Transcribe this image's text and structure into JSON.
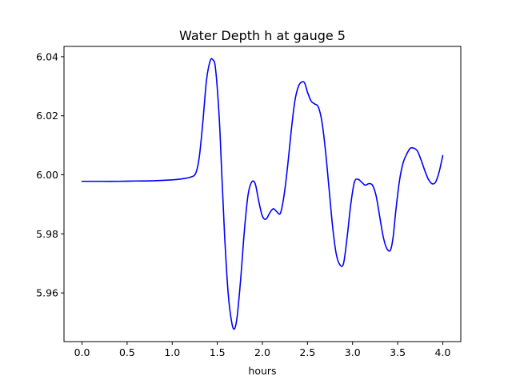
{
  "chart_data": {
    "type": "line",
    "title": "Water Depth h at gauge 5",
    "xlabel": "hours",
    "ylabel": "",
    "xlim": [
      -0.2,
      4.2
    ],
    "ylim": [
      5.9435,
      6.0435
    ],
    "xticks": [
      0.0,
      0.5,
      1.0,
      1.5,
      2.0,
      2.5,
      3.0,
      3.5,
      4.0
    ],
    "xtick_labels": [
      "0.0",
      "0.5",
      "1.0",
      "1.5",
      "2.0",
      "2.5",
      "3.0",
      "3.5",
      "4.0"
    ],
    "yticks": [
      5.96,
      5.98,
      6.0,
      6.02,
      6.04
    ],
    "ytick_labels": [
      "5.96",
      "5.98",
      "6.00",
      "6.02",
      "6.04"
    ],
    "grid": false,
    "legend": "none",
    "series": [
      {
        "color": "#0000ff",
        "x": [
          0.0,
          0.2,
          0.4,
          0.6,
          0.8,
          1.0,
          1.1,
          1.2,
          1.26,
          1.3,
          1.34,
          1.38,
          1.42,
          1.45,
          1.48,
          1.52,
          1.55,
          1.58,
          1.62,
          1.66,
          1.69,
          1.72,
          1.76,
          1.8,
          1.84,
          1.88,
          1.92,
          1.96,
          2.0,
          2.04,
          2.08,
          2.12,
          2.16,
          2.2,
          2.24,
          2.28,
          2.32,
          2.36,
          2.4,
          2.44,
          2.47,
          2.5,
          2.54,
          2.58,
          2.62,
          2.66,
          2.7,
          2.74,
          2.78,
          2.82,
          2.86,
          2.9,
          2.94,
          2.98,
          3.02,
          3.06,
          3.1,
          3.14,
          3.18,
          3.22,
          3.26,
          3.3,
          3.34,
          3.38,
          3.42,
          3.45,
          3.48,
          3.52,
          3.56,
          3.6,
          3.64,
          3.68,
          3.72,
          3.76,
          3.8,
          3.84,
          3.88,
          3.92,
          3.96,
          4.0
        ],
        "y": [
          5.9978,
          5.9978,
          5.9978,
          5.9979,
          5.998,
          5.9983,
          5.9986,
          5.9992,
          6.0005,
          6.006,
          6.018,
          6.032,
          6.0385,
          6.039,
          6.036,
          6.02,
          6.0,
          5.98,
          5.96,
          5.95,
          5.9478,
          5.952,
          5.965,
          5.981,
          5.993,
          5.9975,
          5.997,
          5.991,
          5.986,
          5.985,
          5.987,
          5.9885,
          5.9875,
          5.987,
          5.993,
          6.003,
          6.015,
          6.025,
          6.03,
          6.0315,
          6.031,
          6.028,
          6.025,
          6.024,
          6.023,
          6.018,
          6.008,
          5.995,
          5.982,
          5.973,
          5.9695,
          5.97,
          5.979,
          5.99,
          5.9975,
          5.9985,
          5.9975,
          5.9965,
          5.997,
          5.9965,
          5.993,
          5.986,
          5.979,
          5.975,
          5.9745,
          5.979,
          5.988,
          5.998,
          6.004,
          6.007,
          6.009,
          6.009,
          6.008,
          6.005,
          6.0015,
          5.9985,
          5.997,
          5.9975,
          6.001,
          6.0065
        ]
      }
    ]
  }
}
